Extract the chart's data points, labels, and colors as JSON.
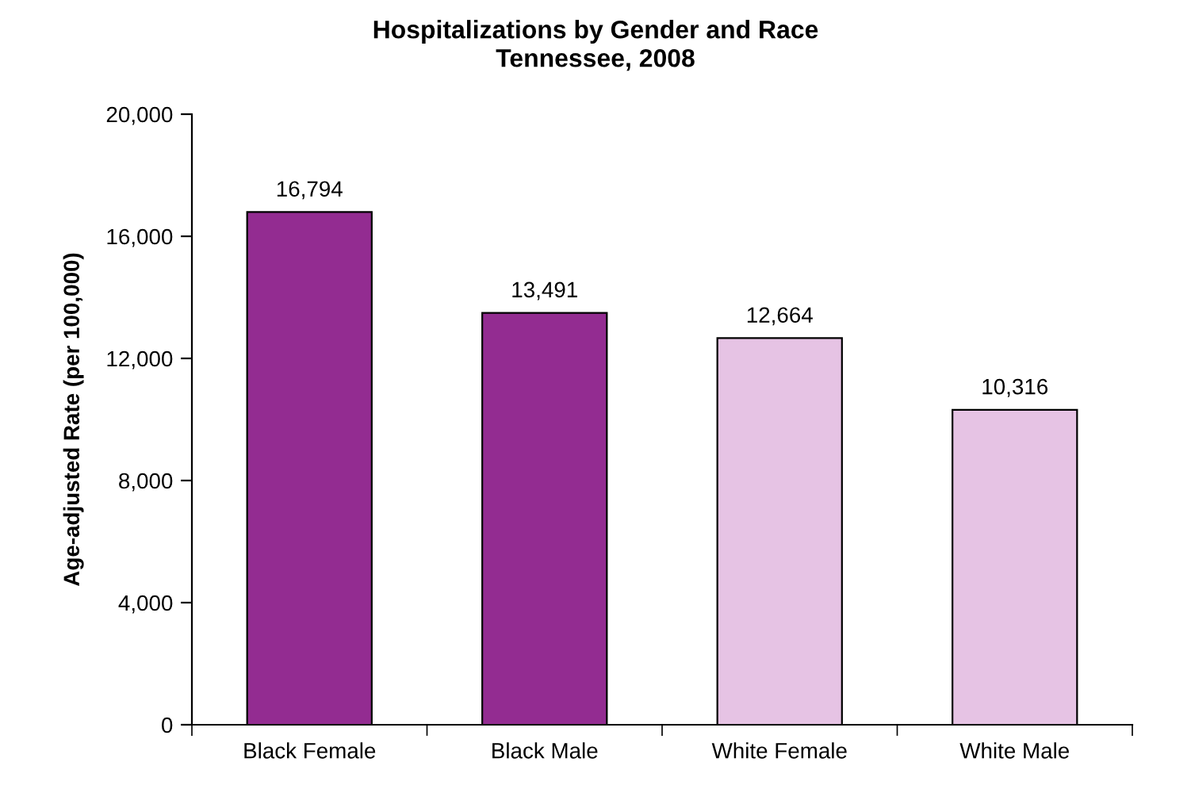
{
  "chart_data": {
    "type": "bar",
    "title": "Hospitalizations by Gender and Race",
    "subtitle": "Tennessee, 2008",
    "ylabel": "Age-adjusted Rate (per 100,000)",
    "categories": [
      "Black Female",
      "Black Male",
      "White Female",
      "White Male"
    ],
    "values": [
      16794,
      13491,
      12664,
      10316
    ],
    "colors": [
      "#932c91",
      "#932c91",
      "#e6c3e4",
      "#e6c3e4"
    ],
    "value_labels": [
      "16,794",
      "13,491",
      "12,664",
      "10,316"
    ],
    "ylim": [
      0,
      20000
    ],
    "yticks": [
      {
        "value": 0,
        "label": "0"
      },
      {
        "value": 4000,
        "label": "4,000"
      },
      {
        "value": 8000,
        "label": "8,000"
      },
      {
        "value": 12000,
        "label": "12,000"
      },
      {
        "value": 16000,
        "label": "16,000"
      },
      {
        "value": 20000,
        "label": "20,000"
      }
    ],
    "grid": false,
    "legend": false
  }
}
